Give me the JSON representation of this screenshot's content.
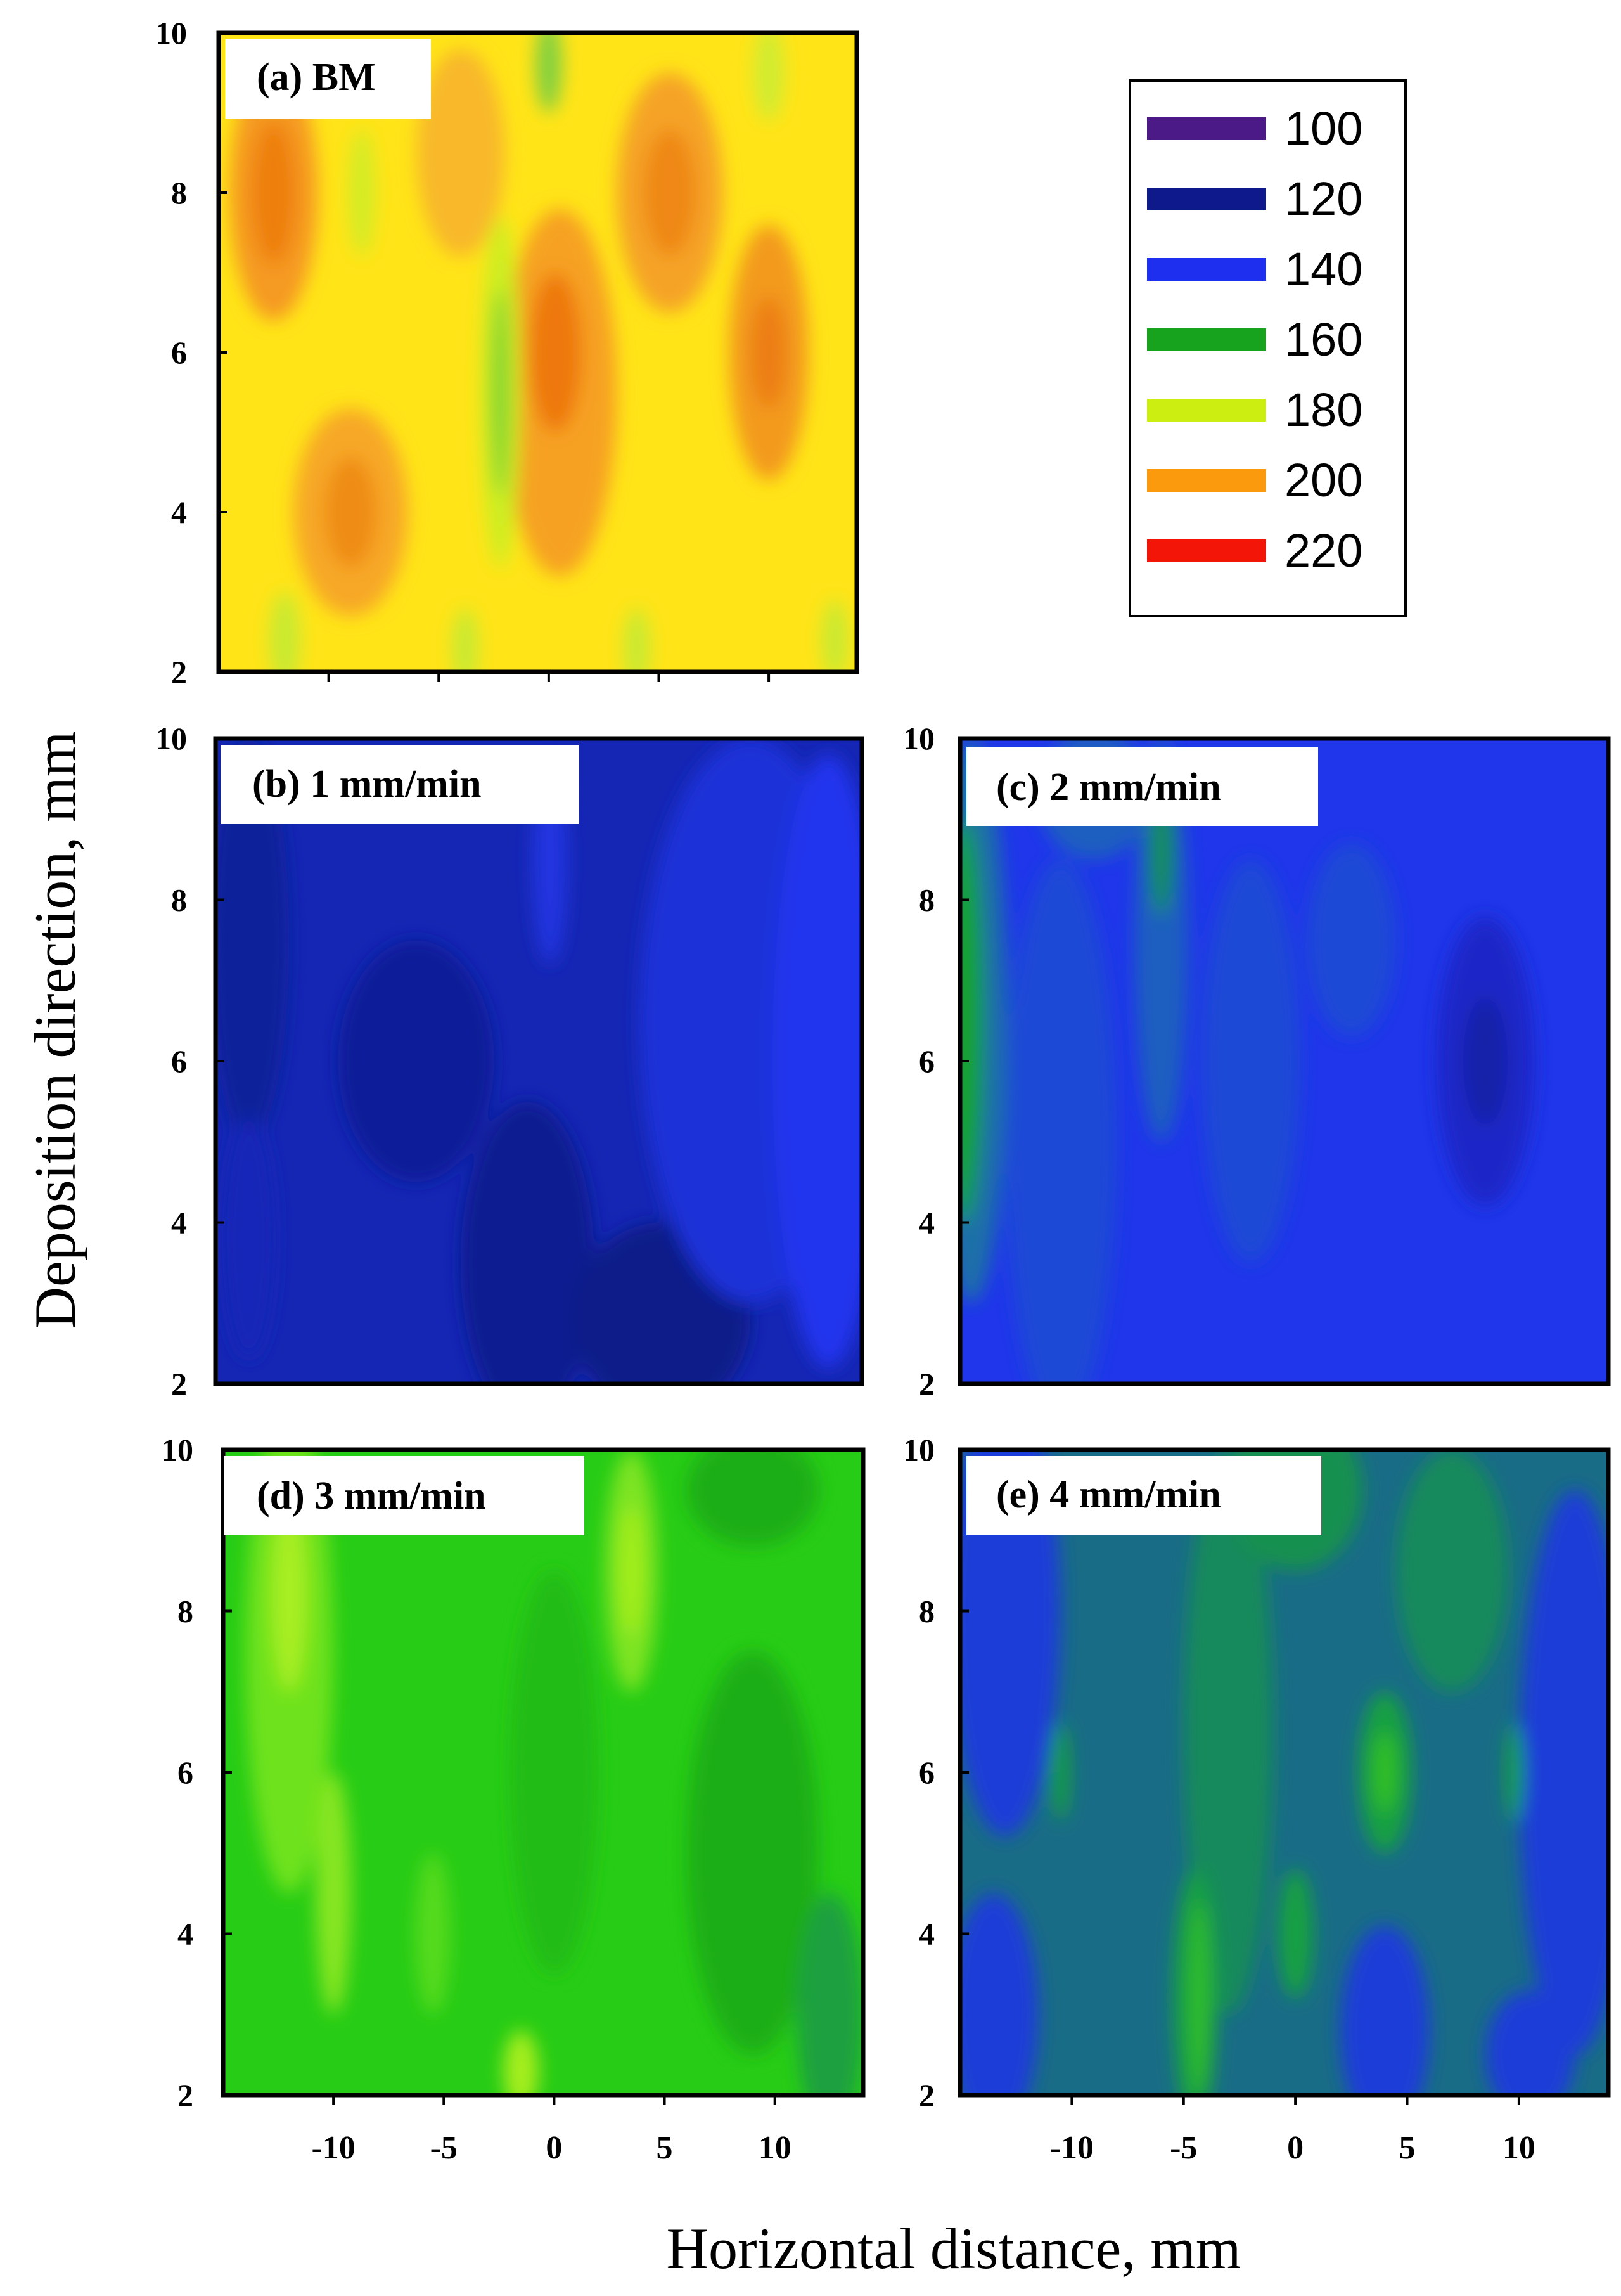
{
  "chart_data": {
    "type": "heatmap",
    "figure_xlabel": "Horizontal distance, mm",
    "figure_ylabel": "Deposition direction, mm",
    "x_ticks": [
      "-10",
      "-5",
      "0",
      "5",
      "10"
    ],
    "y_ticks": [
      "2",
      "4",
      "6",
      "8",
      "10"
    ],
    "xlim": [
      -15,
      14
    ],
    "ylim": [
      2,
      10
    ],
    "legend": {
      "levels": [
        {
          "label": "100",
          "color": "#4b1a86"
        },
        {
          "label": "120",
          "color": "#0e1a8c"
        },
        {
          "label": "140",
          "color": "#1f2ff0"
        },
        {
          "label": "160",
          "color": "#17a31e"
        },
        {
          "label": "180",
          "color": "#ccee11"
        },
        {
          "label": "200",
          "color": "#fb9a0d"
        },
        {
          "label": "220",
          "color": "#f21508"
        }
      ]
    },
    "panels": [
      {
        "label": "(a) BM",
        "base_color": "#ffe418",
        "blobs": [
          {
            "x": -12.5,
            "y": 8.0,
            "rx": 2.0,
            "ry": 1.6,
            "color": "#f59a20"
          },
          {
            "x": -12.5,
            "y": 8.0,
            "rx": 1.0,
            "ry": 0.9,
            "color": "#ee7f10"
          },
          {
            "x": -9.0,
            "y": 4.0,
            "rx": 2.6,
            "ry": 1.3,
            "color": "#f7a825"
          },
          {
            "x": -9.0,
            "y": 4.0,
            "rx": 1.2,
            "ry": 0.7,
            "color": "#ef8c12"
          },
          {
            "x": -4.0,
            "y": 8.5,
            "rx": 2.0,
            "ry": 1.3,
            "color": "#f8b82a"
          },
          {
            "x": 0.5,
            "y": 5.5,
            "rx": 2.6,
            "ry": 2.3,
            "color": "#f6a122"
          },
          {
            "x": 0.3,
            "y": 6.0,
            "rx": 1.2,
            "ry": 1.0,
            "color": "#ee7810"
          },
          {
            "x": 5.5,
            "y": 8.0,
            "rx": 2.4,
            "ry": 1.5,
            "color": "#f5a325"
          },
          {
            "x": 5.5,
            "y": 8.0,
            "rx": 1.2,
            "ry": 0.8,
            "color": "#ef8812"
          },
          {
            "x": 10.0,
            "y": 6.0,
            "rx": 1.8,
            "ry": 1.6,
            "color": "#f39a1e"
          },
          {
            "x": 10.0,
            "y": 6.0,
            "rx": 0.8,
            "ry": 0.7,
            "color": "#ec7d12"
          },
          {
            "x": -2.2,
            "y": 5.5,
            "rx": 0.9,
            "ry": 2.2,
            "color": "#ccee20"
          },
          {
            "x": -2.2,
            "y": 5.5,
            "rx": 0.4,
            "ry": 1.3,
            "color": "#7bd232"
          },
          {
            "x": -8.5,
            "y": 8.0,
            "rx": 0.6,
            "ry": 0.8,
            "color": "#d2ec26"
          },
          {
            "x": 0.0,
            "y": 9.6,
            "rx": 0.6,
            "ry": 0.6,
            "color": "#80d040"
          },
          {
            "x": 10.0,
            "y": 9.5,
            "rx": 0.7,
            "ry": 0.6,
            "color": "#d0ec30"
          },
          {
            "x": -12.0,
            "y": 2.4,
            "rx": 0.7,
            "ry": 0.6,
            "color": "#c8ea30"
          },
          {
            "x": -3.8,
            "y": 2.3,
            "rx": 0.6,
            "ry": 0.5,
            "color": "#c8ea30"
          },
          {
            "x": 4.0,
            "y": 2.3,
            "rx": 0.6,
            "ry": 0.5,
            "color": "#c8ea30"
          },
          {
            "x": 13.0,
            "y": 2.4,
            "rx": 0.6,
            "ry": 0.5,
            "color": "#c8ea30"
          }
        ]
      },
      {
        "label": "(b) 1 mm/min",
        "base_color": "#1526b4",
        "blobs": [
          {
            "x": -13.5,
            "y": 7.5,
            "rx": 1.8,
            "ry": 2.5,
            "color": "#10209a"
          },
          {
            "x": -6.0,
            "y": 6.0,
            "rx": 3.5,
            "ry": 1.5,
            "color": "#0f1e98"
          },
          {
            "x": -1.0,
            "y": 3.5,
            "rx": 3.0,
            "ry": 2.0,
            "color": "#0e1b90"
          },
          {
            "x": 5.0,
            "y": 2.8,
            "rx": 4.0,
            "ry": 1.2,
            "color": "#0e1b88"
          },
          {
            "x": 9.0,
            "y": 6.5,
            "rx": 5.0,
            "ry": 3.5,
            "color": "#1b30d8"
          },
          {
            "x": 12.5,
            "y": 6.0,
            "rx": 2.5,
            "ry": 3.8,
            "color": "#2236ee"
          },
          {
            "x": 0.0,
            "y": 8.5,
            "rx": 0.8,
            "ry": 1.3,
            "color": "#2236e0"
          },
          {
            "x": -13.5,
            "y": 3.8,
            "rx": 1.2,
            "ry": 1.5,
            "color": "#1428b8"
          }
        ]
      },
      {
        "label": "(c) 2 mm/min",
        "base_color": "#1f36ea",
        "blobs": [
          {
            "x": -14.5,
            "y": 6.5,
            "rx": 1.6,
            "ry": 3.5,
            "color": "#1a70a8"
          },
          {
            "x": -14.8,
            "y": 6.5,
            "rx": 0.8,
            "ry": 2.5,
            "color": "#16a22a"
          },
          {
            "x": -6.0,
            "y": 7.5,
            "rx": 1.2,
            "ry": 2.5,
            "color": "#1c5fc0"
          },
          {
            "x": -6.0,
            "y": 8.6,
            "rx": 0.5,
            "ry": 0.8,
            "color": "#169048"
          },
          {
            "x": -10.5,
            "y": 5.0,
            "rx": 2.5,
            "ry": 3.5,
            "color": "#1f48d6"
          },
          {
            "x": -2.0,
            "y": 6.0,
            "rx": 2.2,
            "ry": 2.5,
            "color": "#1f48d6"
          },
          {
            "x": 2.5,
            "y": 7.5,
            "rx": 2.0,
            "ry": 1.2,
            "color": "#1f48d6"
          },
          {
            "x": 8.5,
            "y": 6.0,
            "rx": 2.2,
            "ry": 1.8,
            "color": "#1a26c8"
          },
          {
            "x": 8.5,
            "y": 6.0,
            "rx": 1.0,
            "ry": 0.8,
            "color": "#1520a8"
          },
          {
            "x": -9.0,
            "y": 9.3,
            "rx": 2.5,
            "ry": 0.8,
            "color": "#1c5fc0"
          }
        ]
      },
      {
        "label": "(d) 3 mm/min",
        "base_color": "#27cc16",
        "blobs": [
          {
            "x": -12.0,
            "y": 7.5,
            "rx": 2.0,
            "ry": 3.0,
            "color": "#6ee21c"
          },
          {
            "x": -12.0,
            "y": 8.2,
            "rx": 0.8,
            "ry": 1.2,
            "color": "#a8ee20"
          },
          {
            "x": -10.0,
            "y": 4.5,
            "rx": 0.8,
            "ry": 1.5,
            "color": "#88e620"
          },
          {
            "x": 3.5,
            "y": 8.5,
            "rx": 1.2,
            "ry": 1.5,
            "color": "#7ee420"
          },
          {
            "x": 3.5,
            "y": 8.5,
            "rx": 0.5,
            "ry": 0.8,
            "color": "#a6ee1c"
          },
          {
            "x": -5.5,
            "y": 4.0,
            "rx": 0.8,
            "ry": 1.0,
            "color": "#55da1c"
          },
          {
            "x": 9.0,
            "y": 5.0,
            "rx": 3.0,
            "ry": 2.5,
            "color": "#1fae18"
          },
          {
            "x": 9.0,
            "y": 9.5,
            "rx": 3.0,
            "ry": 0.7,
            "color": "#1fae18"
          },
          {
            "x": 12.5,
            "y": 3.0,
            "rx": 1.5,
            "ry": 1.5,
            "color": "#1fa040"
          },
          {
            "x": -1.5,
            "y": 2.3,
            "rx": 0.8,
            "ry": 0.5,
            "color": "#a6ee1c"
          },
          {
            "x": 0.0,
            "y": 6.0,
            "rx": 2.0,
            "ry": 2.5,
            "color": "#22bc18"
          }
        ]
      },
      {
        "label": "(e) 4 mm/min",
        "base_color": "#196c86",
        "blobs": [
          {
            "x": -13.0,
            "y": 8.0,
            "rx": 2.5,
            "ry": 2.8,
            "color": "#1f3ed8"
          },
          {
            "x": -13.5,
            "y": 3.0,
            "rx": 2.0,
            "ry": 1.5,
            "color": "#1f3ed8"
          },
          {
            "x": 12.5,
            "y": 6.0,
            "rx": 2.5,
            "ry": 3.5,
            "color": "#1f3ed8"
          },
          {
            "x": 4.0,
            "y": 2.8,
            "rx": 2.0,
            "ry": 1.3,
            "color": "#1f3ed8"
          },
          {
            "x": 10.5,
            "y": 2.5,
            "rx": 2.0,
            "ry": 0.8,
            "color": "#1f3ed8"
          },
          {
            "x": -3.0,
            "y": 6.5,
            "rx": 2.0,
            "ry": 3.5,
            "color": "#178a5c"
          },
          {
            "x": -4.5,
            "y": 3.2,
            "rx": 1.0,
            "ry": 1.6,
            "color": "#19a042"
          },
          {
            "x": -4.3,
            "y": 3.2,
            "rx": 0.4,
            "ry": 1.2,
            "color": "#30c028"
          },
          {
            "x": 4.0,
            "y": 6.0,
            "rx": 1.2,
            "ry": 1.0,
            "color": "#19a042"
          },
          {
            "x": 4.0,
            "y": 6.0,
            "rx": 0.5,
            "ry": 0.5,
            "color": "#32c020"
          },
          {
            "x": 0.0,
            "y": 9.5,
            "rx": 3.0,
            "ry": 1.0,
            "color": "#179050"
          },
          {
            "x": 7.0,
            "y": 8.5,
            "rx": 2.5,
            "ry": 1.5,
            "color": "#178a5c"
          },
          {
            "x": -10.5,
            "y": 6.0,
            "rx": 0.4,
            "ry": 0.6,
            "color": "#19a042"
          },
          {
            "x": 9.8,
            "y": 6.0,
            "rx": 0.4,
            "ry": 0.6,
            "color": "#19a042"
          },
          {
            "x": 0.0,
            "y": 4.0,
            "rx": 0.8,
            "ry": 0.8,
            "color": "#19a042"
          }
        ]
      }
    ]
  }
}
